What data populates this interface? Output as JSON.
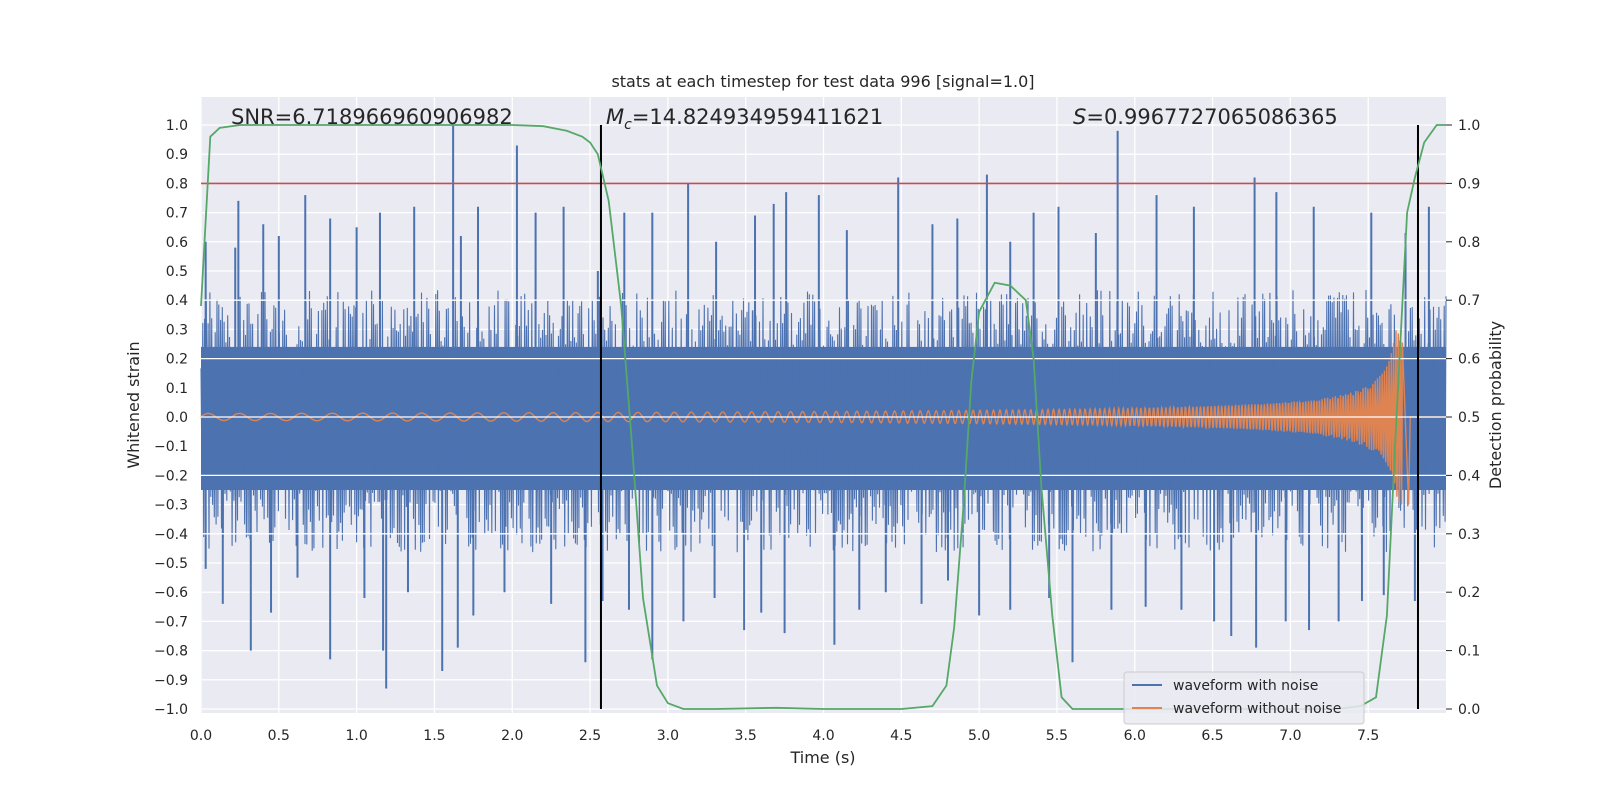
{
  "chart_data": {
    "type": "line",
    "title": "stats at each timestep for test data 996 [signal=1.0]",
    "xlabel": "Time (s)",
    "ylabel": "Whitened strain",
    "ylabel_right": "Detection probability",
    "xlim": [
      0.0,
      8.0
    ],
    "ylim": [
      -1.0,
      1.0
    ],
    "ylim_right": [
      0.0,
      1.0
    ],
    "x_ticks": [
      "0.0",
      "0.5",
      "1.0",
      "1.5",
      "2.0",
      "2.5",
      "3.0",
      "3.5",
      "4.0",
      "4.5",
      "5.0",
      "5.5",
      "6.0",
      "6.5",
      "7.0",
      "7.5"
    ],
    "y_ticks": [
      "1.0",
      "0.9",
      "0.8",
      "0.7",
      "0.6",
      "0.5",
      "0.4",
      "0.3",
      "0.2",
      "0.1",
      "0.0",
      "−0.1",
      "−0.2",
      "−0.3",
      "−0.4",
      "−0.5",
      "−0.6",
      "−0.7",
      "−0.8",
      "−0.9",
      "−1.0"
    ],
    "y_ticks_right": [
      "1.0",
      "0.9",
      "0.8",
      "0.7",
      "0.6",
      "0.5",
      "0.4",
      "0.3",
      "0.2",
      "0.1",
      "0.0"
    ],
    "grid": true,
    "legend_position": "bottom-right",
    "annotations": {
      "snr": "SNR=6.718966960906982",
      "mc_symbol": "M",
      "mc_subscript": "c",
      "mc_value": "=14.824934959411621",
      "s_symbol": "S",
      "s_value": "=0.9967727065086365"
    },
    "threshold_right": 0.9,
    "vertical_lines_x": [
      2.57,
      7.82
    ],
    "series": [
      {
        "name": "waveform with noise",
        "color": "#4c72b0",
        "noise_band": {
          "x_start": 0.0,
          "x_end": 8.0,
          "typical_positive": 0.3,
          "typical_negative": -0.32
        },
        "peaks": [
          [
            0.03,
            0.6
          ],
          [
            0.22,
            0.58
          ],
          [
            0.24,
            0.74
          ],
          [
            0.4,
            0.66
          ],
          [
            0.5,
            0.62
          ],
          [
            0.67,
            0.76
          ],
          [
            0.83,
            0.68
          ],
          [
            1.0,
            0.65
          ],
          [
            1.15,
            0.7
          ],
          [
            1.37,
            0.72
          ],
          [
            1.62,
            1.0
          ],
          [
            1.67,
            0.62
          ],
          [
            1.78,
            0.72
          ],
          [
            2.03,
            0.93
          ],
          [
            2.15,
            0.7
          ],
          [
            2.33,
            0.72
          ],
          [
            2.55,
            0.5
          ],
          [
            2.72,
            0.7
          ],
          [
            2.9,
            0.7
          ],
          [
            3.13,
            0.8
          ],
          [
            3.31,
            0.6
          ],
          [
            3.56,
            0.69
          ],
          [
            3.68,
            0.73
          ],
          [
            3.76,
            0.77
          ],
          [
            3.97,
            0.76
          ],
          [
            4.15,
            0.64
          ],
          [
            4.48,
            0.82
          ],
          [
            4.7,
            0.66
          ],
          [
            4.86,
            0.68
          ],
          [
            5.05,
            0.83
          ],
          [
            5.2,
            0.6
          ],
          [
            5.35,
            0.7
          ],
          [
            5.51,
            0.72
          ],
          [
            5.75,
            0.63
          ],
          [
            5.89,
            0.98
          ],
          [
            6.14,
            0.76
          ],
          [
            6.38,
            0.72
          ],
          [
            6.77,
            0.82
          ],
          [
            6.91,
            0.77
          ],
          [
            7.15,
            0.72
          ],
          [
            7.52,
            0.7
          ],
          [
            7.74,
            0.63
          ],
          [
            7.89,
            0.72
          ]
        ],
        "troughs": [
          [
            0.03,
            -0.52
          ],
          [
            0.14,
            -0.64
          ],
          [
            0.32,
            -0.8
          ],
          [
            0.45,
            -0.67
          ],
          [
            0.62,
            -0.55
          ],
          [
            0.83,
            -0.83
          ],
          [
            1.05,
            -0.62
          ],
          [
            1.17,
            -0.8
          ],
          [
            1.19,
            -0.93
          ],
          [
            1.33,
            -0.6
          ],
          [
            1.55,
            -0.87
          ],
          [
            1.65,
            -0.79
          ],
          [
            1.75,
            -0.68
          ],
          [
            1.95,
            -0.6
          ],
          [
            2.25,
            -0.64
          ],
          [
            2.47,
            -0.84
          ],
          [
            2.58,
            -0.63
          ],
          [
            2.75,
            -0.66
          ],
          [
            2.9,
            -0.83
          ],
          [
            3.1,
            -0.7
          ],
          [
            3.3,
            -0.62
          ],
          [
            3.49,
            -0.73
          ],
          [
            3.6,
            -0.67
          ],
          [
            3.75,
            -0.74
          ],
          [
            4.07,
            -0.78
          ],
          [
            4.23,
            -0.66
          ],
          [
            4.4,
            -0.6
          ],
          [
            4.63,
            -0.64
          ],
          [
            4.8,
            -0.56
          ],
          [
            5.0,
            -0.68
          ],
          [
            5.2,
            -0.66
          ],
          [
            5.45,
            -0.62
          ],
          [
            5.6,
            -0.84
          ],
          [
            5.85,
            -0.66
          ],
          [
            6.07,
            -0.65
          ],
          [
            6.3,
            -0.66
          ],
          [
            6.51,
            -0.7
          ],
          [
            6.62,
            -0.75
          ],
          [
            6.78,
            -0.79
          ],
          [
            6.97,
            -0.7
          ],
          [
            7.12,
            -0.73
          ],
          [
            7.31,
            -0.7
          ],
          [
            7.46,
            -0.63
          ],
          [
            7.6,
            -0.61
          ],
          [
            7.8,
            -0.63
          ]
        ]
      },
      {
        "name": "waveform without noise",
        "color": "#dd8452",
        "chirp": {
          "start_amplitude": 0.012,
          "start_frequency_hz": 5,
          "end_frequency_hz": 70,
          "peak_amplitude": 0.3,
          "merger_time": 7.72,
          "end_time": 7.76
        }
      },
      {
        "name": "Detection probability",
        "color": "#55a868",
        "axis": "right",
        "x": [
          0.0,
          0.06,
          0.12,
          0.25,
          0.5,
          1.0,
          1.5,
          2.0,
          2.2,
          2.35,
          2.45,
          2.5,
          2.55,
          2.62,
          2.7,
          2.77,
          2.84,
          2.93,
          3.0,
          3.1,
          3.3,
          3.7,
          4.0,
          4.5,
          4.7,
          4.79,
          4.84,
          4.9,
          4.95,
          5.0,
          5.1,
          5.2,
          5.3,
          5.35,
          5.4,
          5.47,
          5.53,
          5.6,
          6.0,
          6.5,
          7.0,
          7.3,
          7.45,
          7.55,
          7.62,
          7.68,
          7.75,
          7.8,
          7.86,
          7.94,
          8.0
        ],
        "y": [
          0.69,
          0.98,
          0.995,
          1.0,
          1.0,
          1.0,
          1.0,
          1.0,
          0.998,
          0.99,
          0.98,
          0.97,
          0.95,
          0.87,
          0.69,
          0.45,
          0.19,
          0.04,
          0.01,
          0.0,
          0.0,
          0.002,
          0.0,
          0.0,
          0.005,
          0.04,
          0.14,
          0.35,
          0.56,
          0.68,
          0.73,
          0.725,
          0.7,
          0.6,
          0.38,
          0.16,
          0.02,
          0.0,
          0.0,
          0.0,
          0.0,
          0.0,
          0.005,
          0.02,
          0.16,
          0.49,
          0.85,
          0.91,
          0.97,
          1.0,
          1.0
        ]
      },
      {
        "name": "threshold",
        "color": "#c44e52",
        "axis": "right"
      }
    ]
  }
}
